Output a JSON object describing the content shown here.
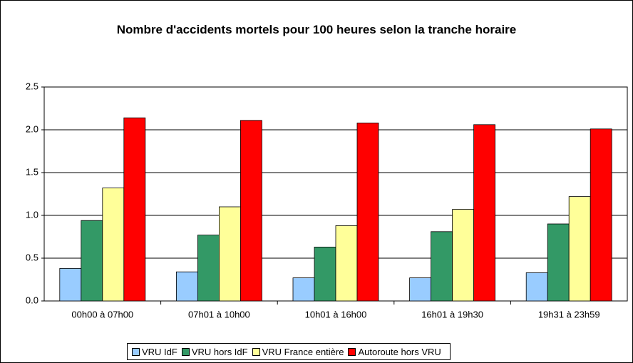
{
  "chart_data": {
    "type": "bar",
    "title": "Nombre d'accidents mortels pour 100 heures selon la tranche horaire",
    "categories": [
      "00h00 à 07h00",
      "07h01 à 10h00",
      "10h01 à 16h00",
      "16h01 à 19h30",
      "19h31 à 23h59"
    ],
    "series": [
      {
        "name": "VRU IdF",
        "color": "#99ccff",
        "values": [
          0.38,
          0.34,
          0.27,
          0.27,
          0.33
        ]
      },
      {
        "name": "VRU hors IdF",
        "color": "#339966",
        "values": [
          0.94,
          0.77,
          0.63,
          0.81,
          0.9
        ]
      },
      {
        "name": "VRU France entière",
        "color": "#ffff99",
        "values": [
          1.32,
          1.1,
          0.88,
          1.07,
          1.22
        ]
      },
      {
        "name": "Autoroute hors VRU",
        "color": "#ff0000",
        "values": [
          2.14,
          2.11,
          2.08,
          2.06,
          2.01
        ]
      }
    ],
    "ylim": [
      0,
      2.5
    ],
    "yticks": [
      {
        "value": 0,
        "label": "0.0"
      },
      0.5,
      {
        "value": 1,
        "label": "1.0"
      },
      1.5,
      {
        "value": 2,
        "label": "2.0"
      },
      2.5
    ],
    "grid": true,
    "legend": "bottom"
  }
}
